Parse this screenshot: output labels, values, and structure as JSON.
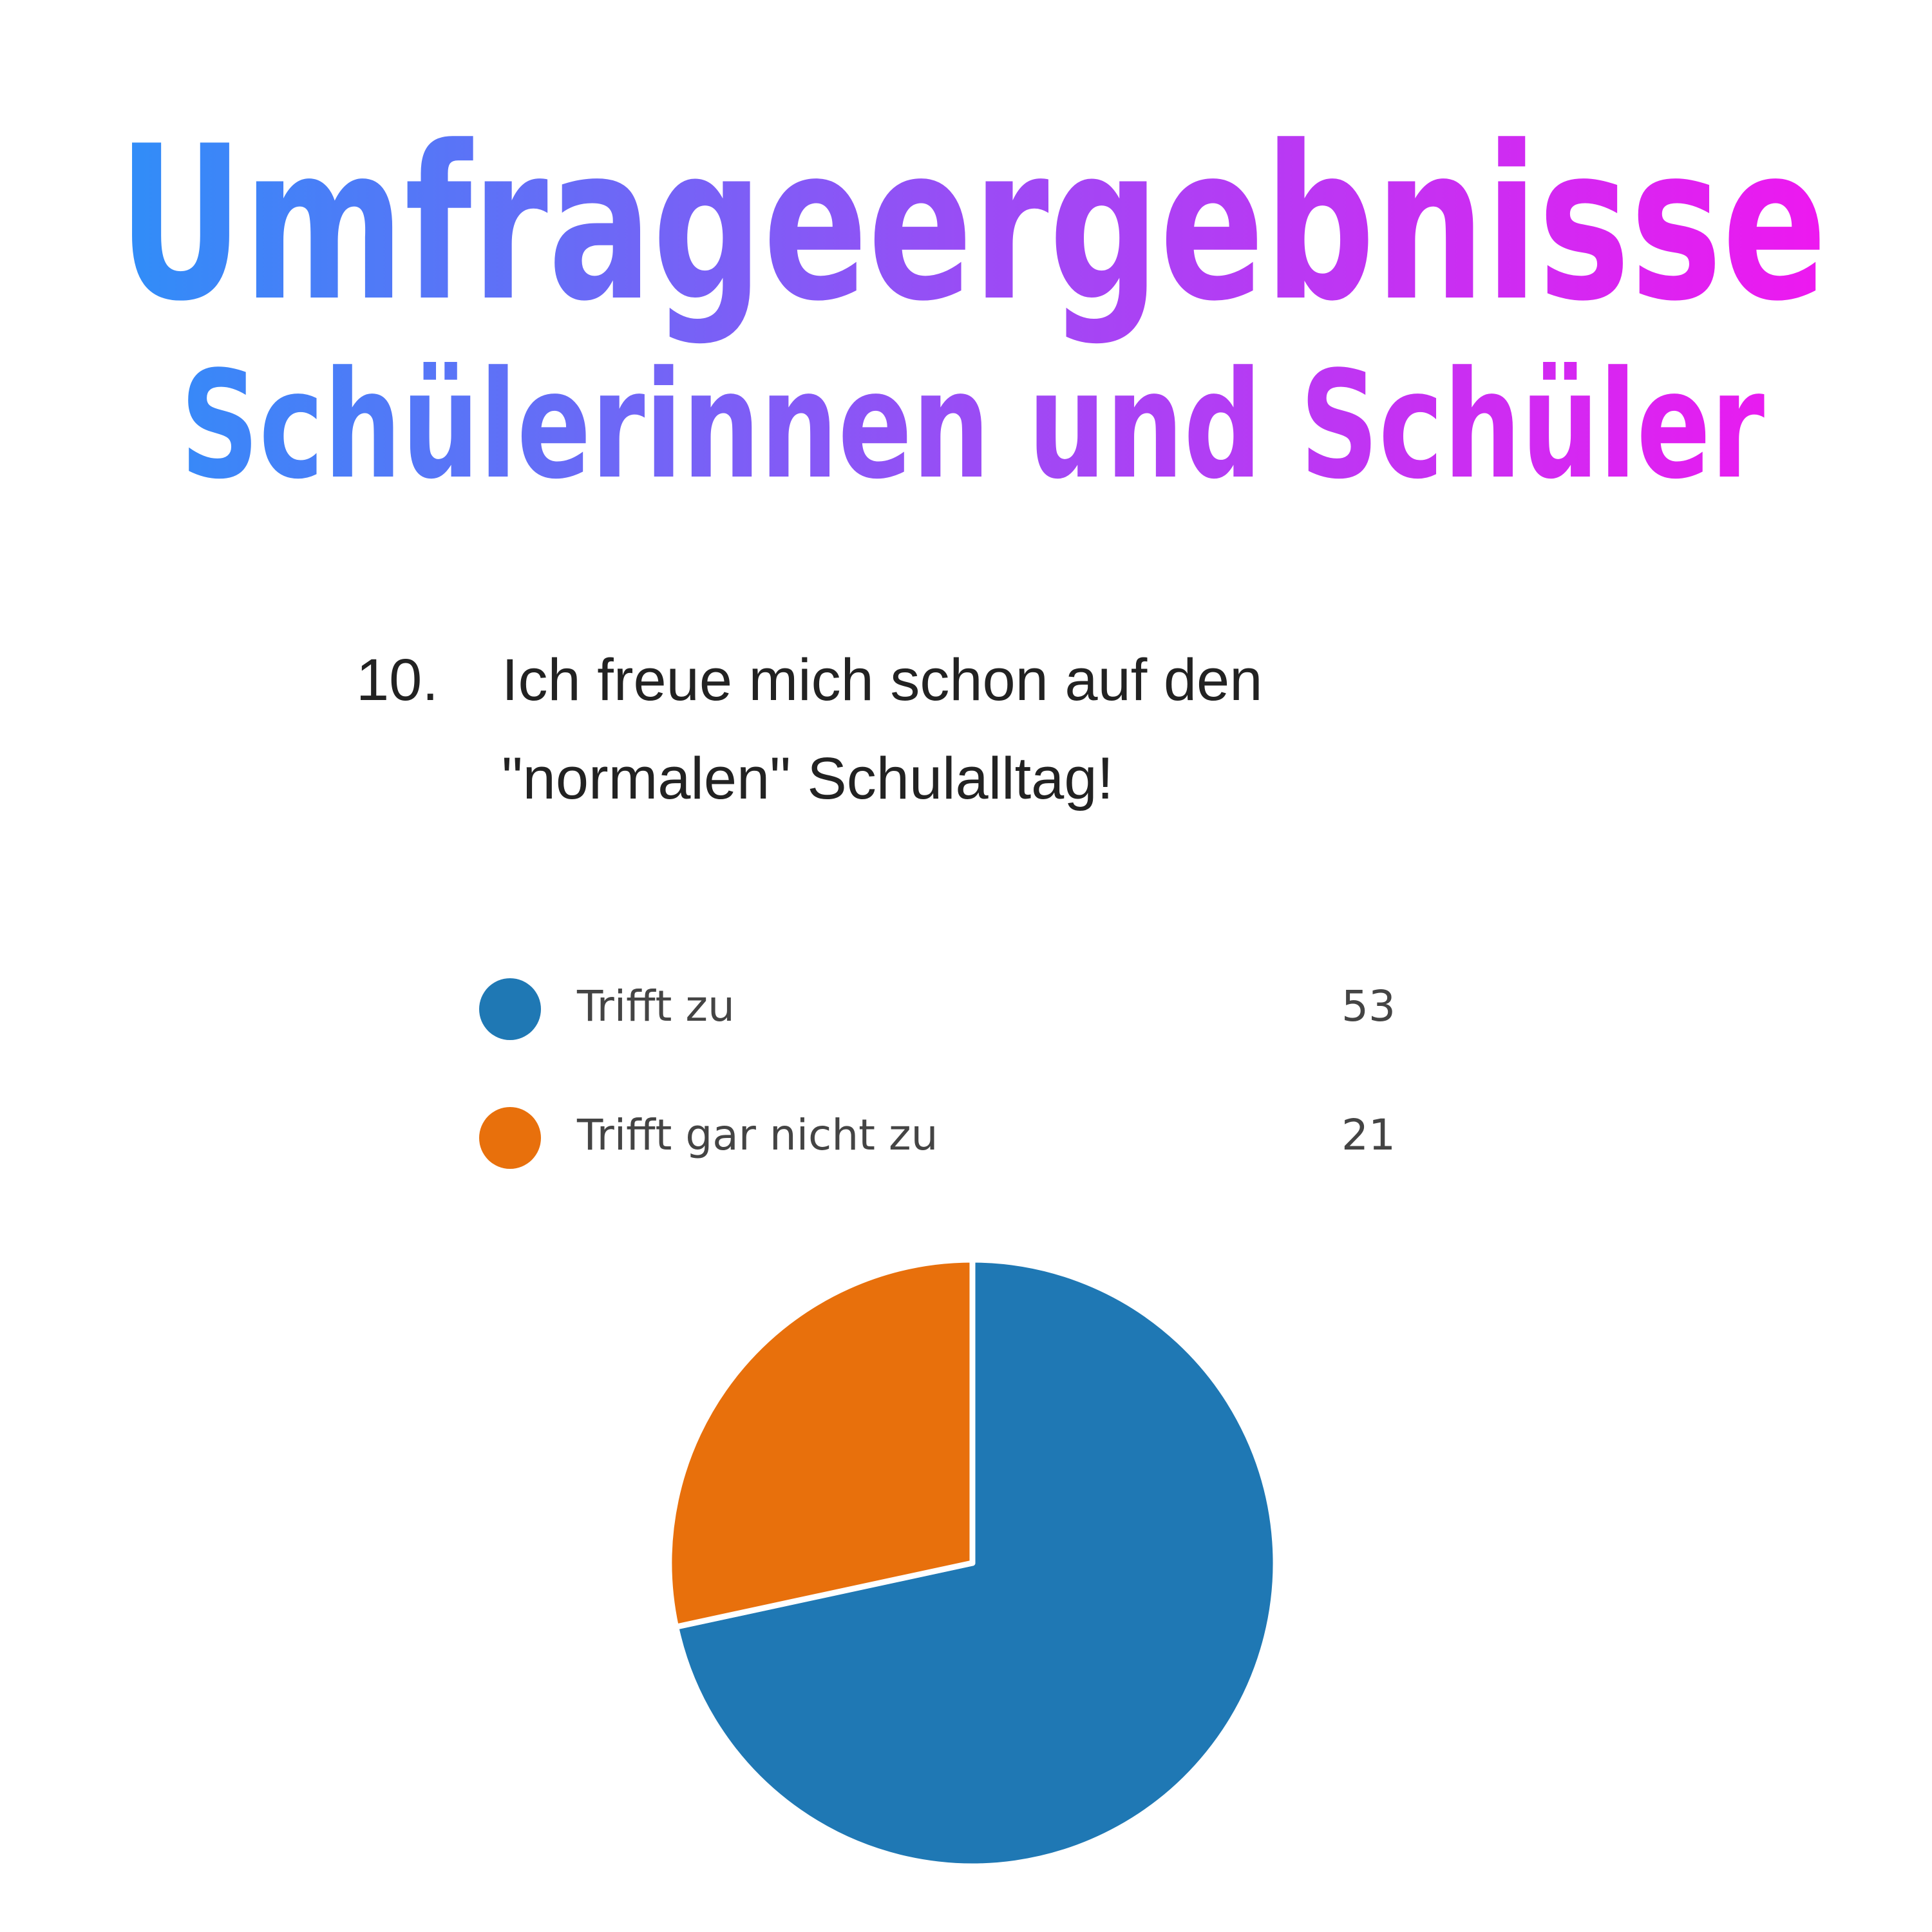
{
  "chart_data": {
    "type": "pie",
    "title": "Umfrageergebnisse",
    "subtitle": "Schülerinnen und Schüler",
    "question_number": "10.",
    "question_lines": [
      "Ich freue mich schon auf den",
      "\"normalen\" Schulalltag!"
    ],
    "categories": [
      "Trifft zu",
      "Trifft gar nicht zu"
    ],
    "values": [
      53,
      21
    ],
    "colors": [
      "#1f78b4",
      "#e8700c"
    ]
  }
}
